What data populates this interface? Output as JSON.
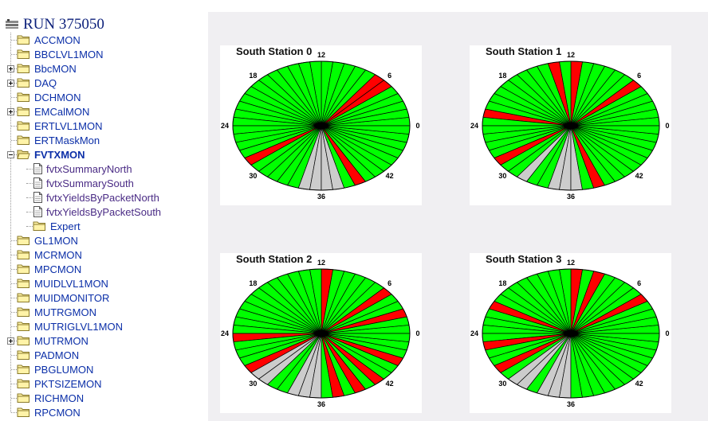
{
  "tree": {
    "run_title": "RUN 375050",
    "items": [
      {
        "label": "ACCMON",
        "expandable": false
      },
      {
        "label": "BBCLVL1MON",
        "expandable": false
      },
      {
        "label": "BbcMON",
        "expandable": true
      },
      {
        "label": "DAQ",
        "expandable": true
      },
      {
        "label": "DCHMON",
        "expandable": false
      },
      {
        "label": "EMCalMON",
        "expandable": true
      },
      {
        "label": "ERTLVL1MON",
        "expandable": false
      },
      {
        "label": "ERTMaskMon",
        "expandable": false
      },
      {
        "label": "FVTXMON",
        "expandable": true,
        "expanded": true,
        "selected": true
      },
      {
        "label": "fvtxSummaryNorth",
        "leaf": true
      },
      {
        "label": "fvtxSummarySouth",
        "leaf": true
      },
      {
        "label": "fvtxYieldsByPacketNorth",
        "leaf": true
      },
      {
        "label": "fvtxYieldsByPacketSouth",
        "leaf": true
      },
      {
        "label": "Expert",
        "subfolder": true
      },
      {
        "label": "GL1MON",
        "expandable": false
      },
      {
        "label": "MCRMON",
        "expandable": false
      },
      {
        "label": "MPCMON",
        "expandable": false
      },
      {
        "label": "MUIDLVL1MON",
        "expandable": false
      },
      {
        "label": "MUIDMONITOR",
        "expandable": false
      },
      {
        "label": "MUTRGMON",
        "expandable": false
      },
      {
        "label": "MUTRIGLVL1MON",
        "expandable": false
      },
      {
        "label": "MUTRMON",
        "expandable": true
      },
      {
        "label": "PADMON",
        "expandable": false
      },
      {
        "label": "PBGLUMON",
        "expandable": false
      },
      {
        "label": "PKTSIZEMON",
        "expandable": false
      },
      {
        "label": "RICHMON",
        "expandable": false
      },
      {
        "label": "RPCMON",
        "expandable": false
      }
    ]
  },
  "colors": {
    "good": "#00ff00",
    "bad": "#ff0000",
    "off": "#cccccc",
    "link": "#0b2fa8"
  },
  "panels": [
    {
      "title": "South Station 0",
      "labels": [
        "12",
        "6",
        "0",
        "42",
        "36",
        "30",
        "24",
        "18"
      ],
      "wedges": [
        "G",
        "G",
        "G",
        "G",
        "G",
        "R",
        "R",
        "G",
        "G",
        "G",
        "G",
        "G",
        "G",
        "G",
        "G",
        "G",
        "G",
        "G",
        "G",
        "G",
        "G",
        "G",
        "G",
        "G",
        "G",
        "G",
        "G",
        "G",
        "R",
        "G",
        "G",
        "G",
        "G",
        "G",
        "W",
        "W",
        "W",
        "W",
        "G",
        "R",
        "G",
        "G",
        "G",
        "G",
        "G",
        "G",
        "G",
        "G"
      ]
    },
    {
      "title": "South Station 1",
      "labels": [
        "12",
        "6",
        "0",
        "42",
        "36",
        "30",
        "24",
        "18"
      ],
      "wedges": [
        "G",
        "G",
        "G",
        "G",
        "G",
        "R",
        "G",
        "G",
        "G",
        "G",
        "G",
        "R",
        "G",
        "R",
        "G",
        "G",
        "G",
        "G",
        "G",
        "G",
        "G",
        "G",
        "R",
        "G",
        "G",
        "G",
        "G",
        "G",
        "R",
        "G",
        "G",
        "W",
        "G",
        "G",
        "W",
        "W",
        "W",
        "G",
        "R",
        "G",
        "G",
        "G",
        "G",
        "G",
        "G",
        "G",
        "G",
        "G"
      ]
    },
    {
      "title": "South Station 2",
      "labels": [
        "12",
        "6",
        "0",
        "42",
        "36",
        "30",
        "24",
        "18"
      ],
      "wedges": [
        "G",
        "G",
        "R",
        "G",
        "G",
        "R",
        "G",
        "G",
        "G",
        "G",
        "G",
        "R",
        "G",
        "G",
        "G",
        "G",
        "G",
        "G",
        "G",
        "G",
        "G",
        "G",
        "G",
        "G",
        "R",
        "G",
        "G",
        "G",
        "R",
        "W",
        "W",
        "G",
        "G",
        "W",
        "W",
        "W",
        "G",
        "R",
        "G",
        "R",
        "G",
        "R",
        "G",
        "G",
        "R",
        "G",
        "G",
        "G"
      ]
    },
    {
      "title": "South Station 3",
      "labels": [
        "12",
        "6",
        "0",
        "42",
        "36",
        "30",
        "24",
        "18"
      ],
      "wedges": [
        "G",
        "G",
        "G",
        "G",
        "R",
        "G",
        "G",
        "G",
        "G",
        "R",
        "G",
        "R",
        "G",
        "G",
        "G",
        "G",
        "G",
        "G",
        "G",
        "G",
        "R",
        "G",
        "G",
        "G",
        "G",
        "R",
        "G",
        "G",
        "R",
        "G",
        "W",
        "W",
        "G",
        "W",
        "W",
        "W",
        "G",
        "G",
        "G",
        "G",
        "G",
        "G",
        "G",
        "G",
        "G",
        "G",
        "G",
        "G"
      ]
    }
  ]
}
